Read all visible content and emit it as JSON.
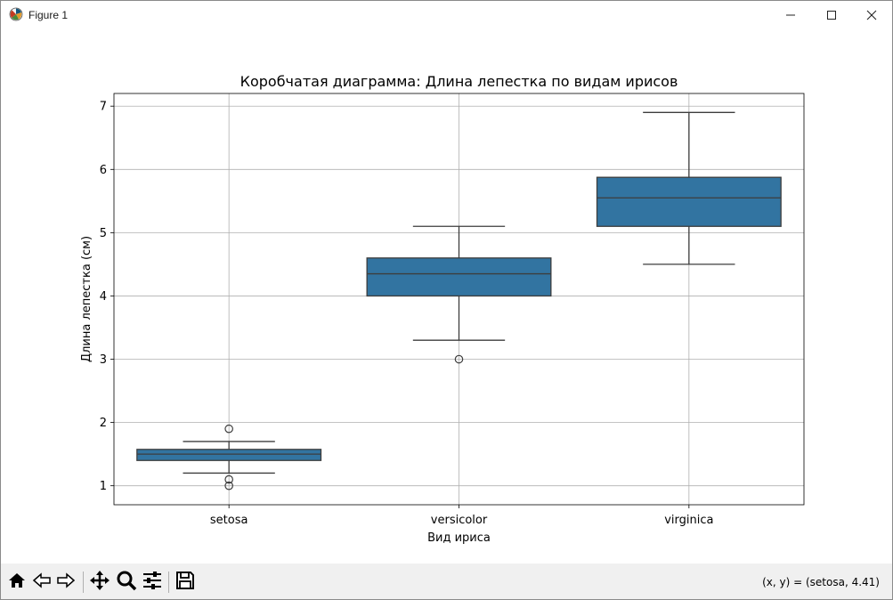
{
  "window": {
    "title": "Figure 1",
    "app_icon": "matplotlib-icon",
    "controls": [
      "minimize-icon",
      "maximize-icon",
      "close-icon"
    ]
  },
  "toolbar": {
    "buttons": [
      {
        "name": "home-button",
        "icon": "home-icon"
      },
      {
        "name": "back-button",
        "icon": "back-arrow-icon"
      },
      {
        "name": "forward-button",
        "icon": "forward-arrow-icon"
      },
      {
        "name": "pan-button",
        "icon": "move-icon"
      },
      {
        "name": "zoom-button",
        "icon": "magnifier-icon"
      },
      {
        "name": "configure-subplots-button",
        "icon": "sliders-icon"
      },
      {
        "name": "save-button",
        "icon": "floppy-disk-icon"
      }
    ],
    "coords": "(x, y) = (setosa, 4.41)"
  },
  "chart_data": {
    "type": "box",
    "title": "Коробчатая диаграмма: Длина лепестка по видам ирисов",
    "xlabel": "Вид ириса",
    "ylabel": "Длина лепестка (см)",
    "categories": [
      "setosa",
      "versicolor",
      "virginica"
    ],
    "ylim": [
      0.7,
      7.2
    ],
    "yticks": [
      1,
      2,
      3,
      4,
      5,
      6,
      7
    ],
    "grid": true,
    "box_color": "#3274a1",
    "boxes": [
      {
        "category": "setosa",
        "whisker_low": 1.2,
        "q1": 1.4,
        "median": 1.5,
        "q3": 1.575,
        "whisker_high": 1.7,
        "outliers": [
          1.9,
          1.1,
          1.0
        ]
      },
      {
        "category": "versicolor",
        "whisker_low": 3.3,
        "q1": 4.0,
        "median": 4.35,
        "q3": 4.6,
        "whisker_high": 5.1,
        "outliers": [
          3.0
        ]
      },
      {
        "category": "virginica",
        "whisker_low": 4.5,
        "q1": 5.1,
        "median": 5.55,
        "q3": 5.875,
        "whisker_high": 6.9,
        "outliers": []
      }
    ]
  }
}
